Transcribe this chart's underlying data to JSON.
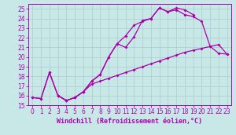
{
  "xlabel": "Windchill (Refroidissement éolien,°C)",
  "xlim": [
    -0.5,
    23.5
  ],
  "ylim": [
    15,
    25.5
  ],
  "xticks": [
    0,
    1,
    2,
    3,
    4,
    5,
    6,
    7,
    8,
    9,
    10,
    11,
    12,
    13,
    14,
    15,
    16,
    17,
    18,
    19,
    20,
    21,
    22,
    23
  ],
  "yticks": [
    15,
    16,
    17,
    18,
    19,
    20,
    21,
    22,
    23,
    24,
    25
  ],
  "bg_color": "#c8e8e8",
  "line_color": "#aa00aa",
  "grid_color": "#aacccc",
  "tick_font_size": 5.5,
  "label_font_size": 6.0,
  "marker": "D",
  "markersize": 2.0,
  "linewidth": 0.9,
  "curve1_x": [
    0,
    1,
    2,
    3,
    4,
    5,
    6,
    7,
    8,
    9,
    10,
    11,
    12,
    13,
    14,
    15,
    16,
    17,
    18,
    19,
    20,
    21,
    22,
    23
  ],
  "curve1_y": [
    15.8,
    15.7,
    18.4,
    16.0,
    15.5,
    15.8,
    16.4,
    17.2,
    17.5,
    17.8,
    18.1,
    18.4,
    18.7,
    19.0,
    19.3,
    19.6,
    19.9,
    20.2,
    20.5,
    20.7,
    20.9,
    21.1,
    21.3,
    20.3
  ],
  "curve2_x": [
    0,
    1,
    2,
    3,
    4,
    5,
    6,
    7,
    8,
    9,
    10,
    11,
    12,
    13,
    14,
    15,
    16,
    17,
    18,
    19,
    20,
    21,
    22,
    23
  ],
  "curve2_y": [
    15.8,
    15.7,
    18.4,
    16.0,
    15.5,
    15.8,
    16.4,
    17.5,
    18.2,
    20.0,
    21.4,
    22.2,
    23.3,
    23.7,
    24.0,
    25.1,
    24.7,
    24.9,
    24.4,
    24.2,
    23.7,
    21.1,
    20.4,
    20.3
  ],
  "curve3_x": [
    3,
    4,
    5,
    6,
    7,
    8,
    9,
    10,
    11,
    12,
    13,
    14,
    15,
    16,
    17,
    18,
    19
  ],
  "curve3_y": [
    16.0,
    15.5,
    15.8,
    16.4,
    17.5,
    18.2,
    20.0,
    21.4,
    21.0,
    22.1,
    23.8,
    24.0,
    25.1,
    24.7,
    25.1,
    24.9,
    24.4
  ]
}
